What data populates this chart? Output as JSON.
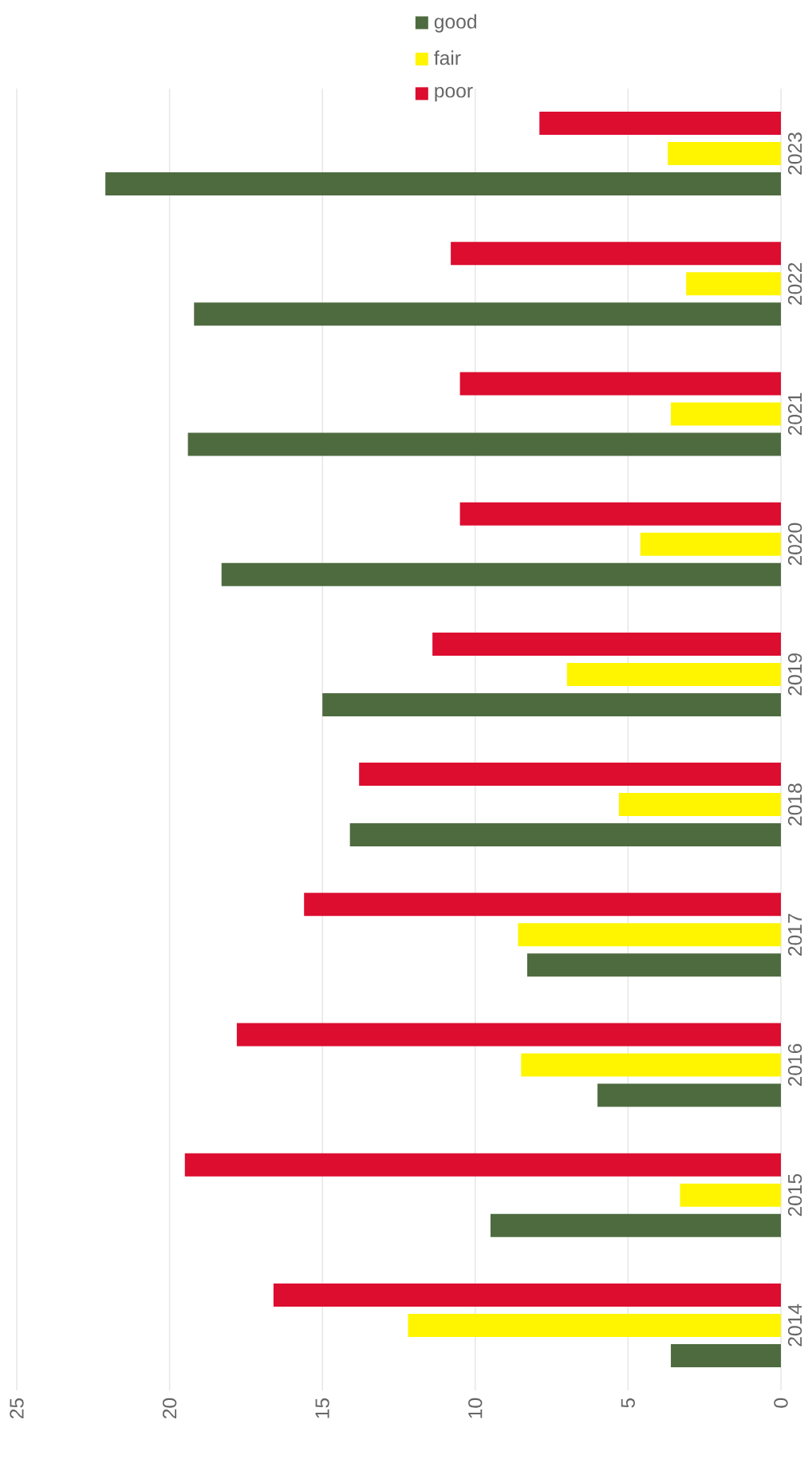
{
  "chart_data": {
    "type": "bar",
    "orientation": "horizontal",
    "categories": [
      "2023",
      "2022",
      "2021",
      "2020",
      "2019",
      "2018",
      "2017",
      "2016",
      "2015",
      "2014"
    ],
    "series": [
      {
        "name": "good",
        "color": "#4e6b3f",
        "values": [
          22.1,
          19.2,
          19.4,
          18.3,
          15.0,
          14.1,
          8.3,
          6.0,
          9.5,
          3.6
        ]
      },
      {
        "name": "fair",
        "color": "#fff500",
        "values": [
          3.7,
          3.1,
          3.6,
          4.6,
          7.0,
          5.3,
          8.6,
          8.5,
          3.3,
          12.2
        ]
      },
      {
        "name": "poor",
        "color": "#dc0d2f",
        "values": [
          7.9,
          10.8,
          10.5,
          10.5,
          11.4,
          13.8,
          15.6,
          17.8,
          19.5,
          16.6
        ]
      }
    ],
    "xlim": [
      25,
      0
    ],
    "xticks": [
      25,
      20,
      15,
      10,
      5,
      0
    ],
    "grid": "x",
    "legend": "top"
  }
}
